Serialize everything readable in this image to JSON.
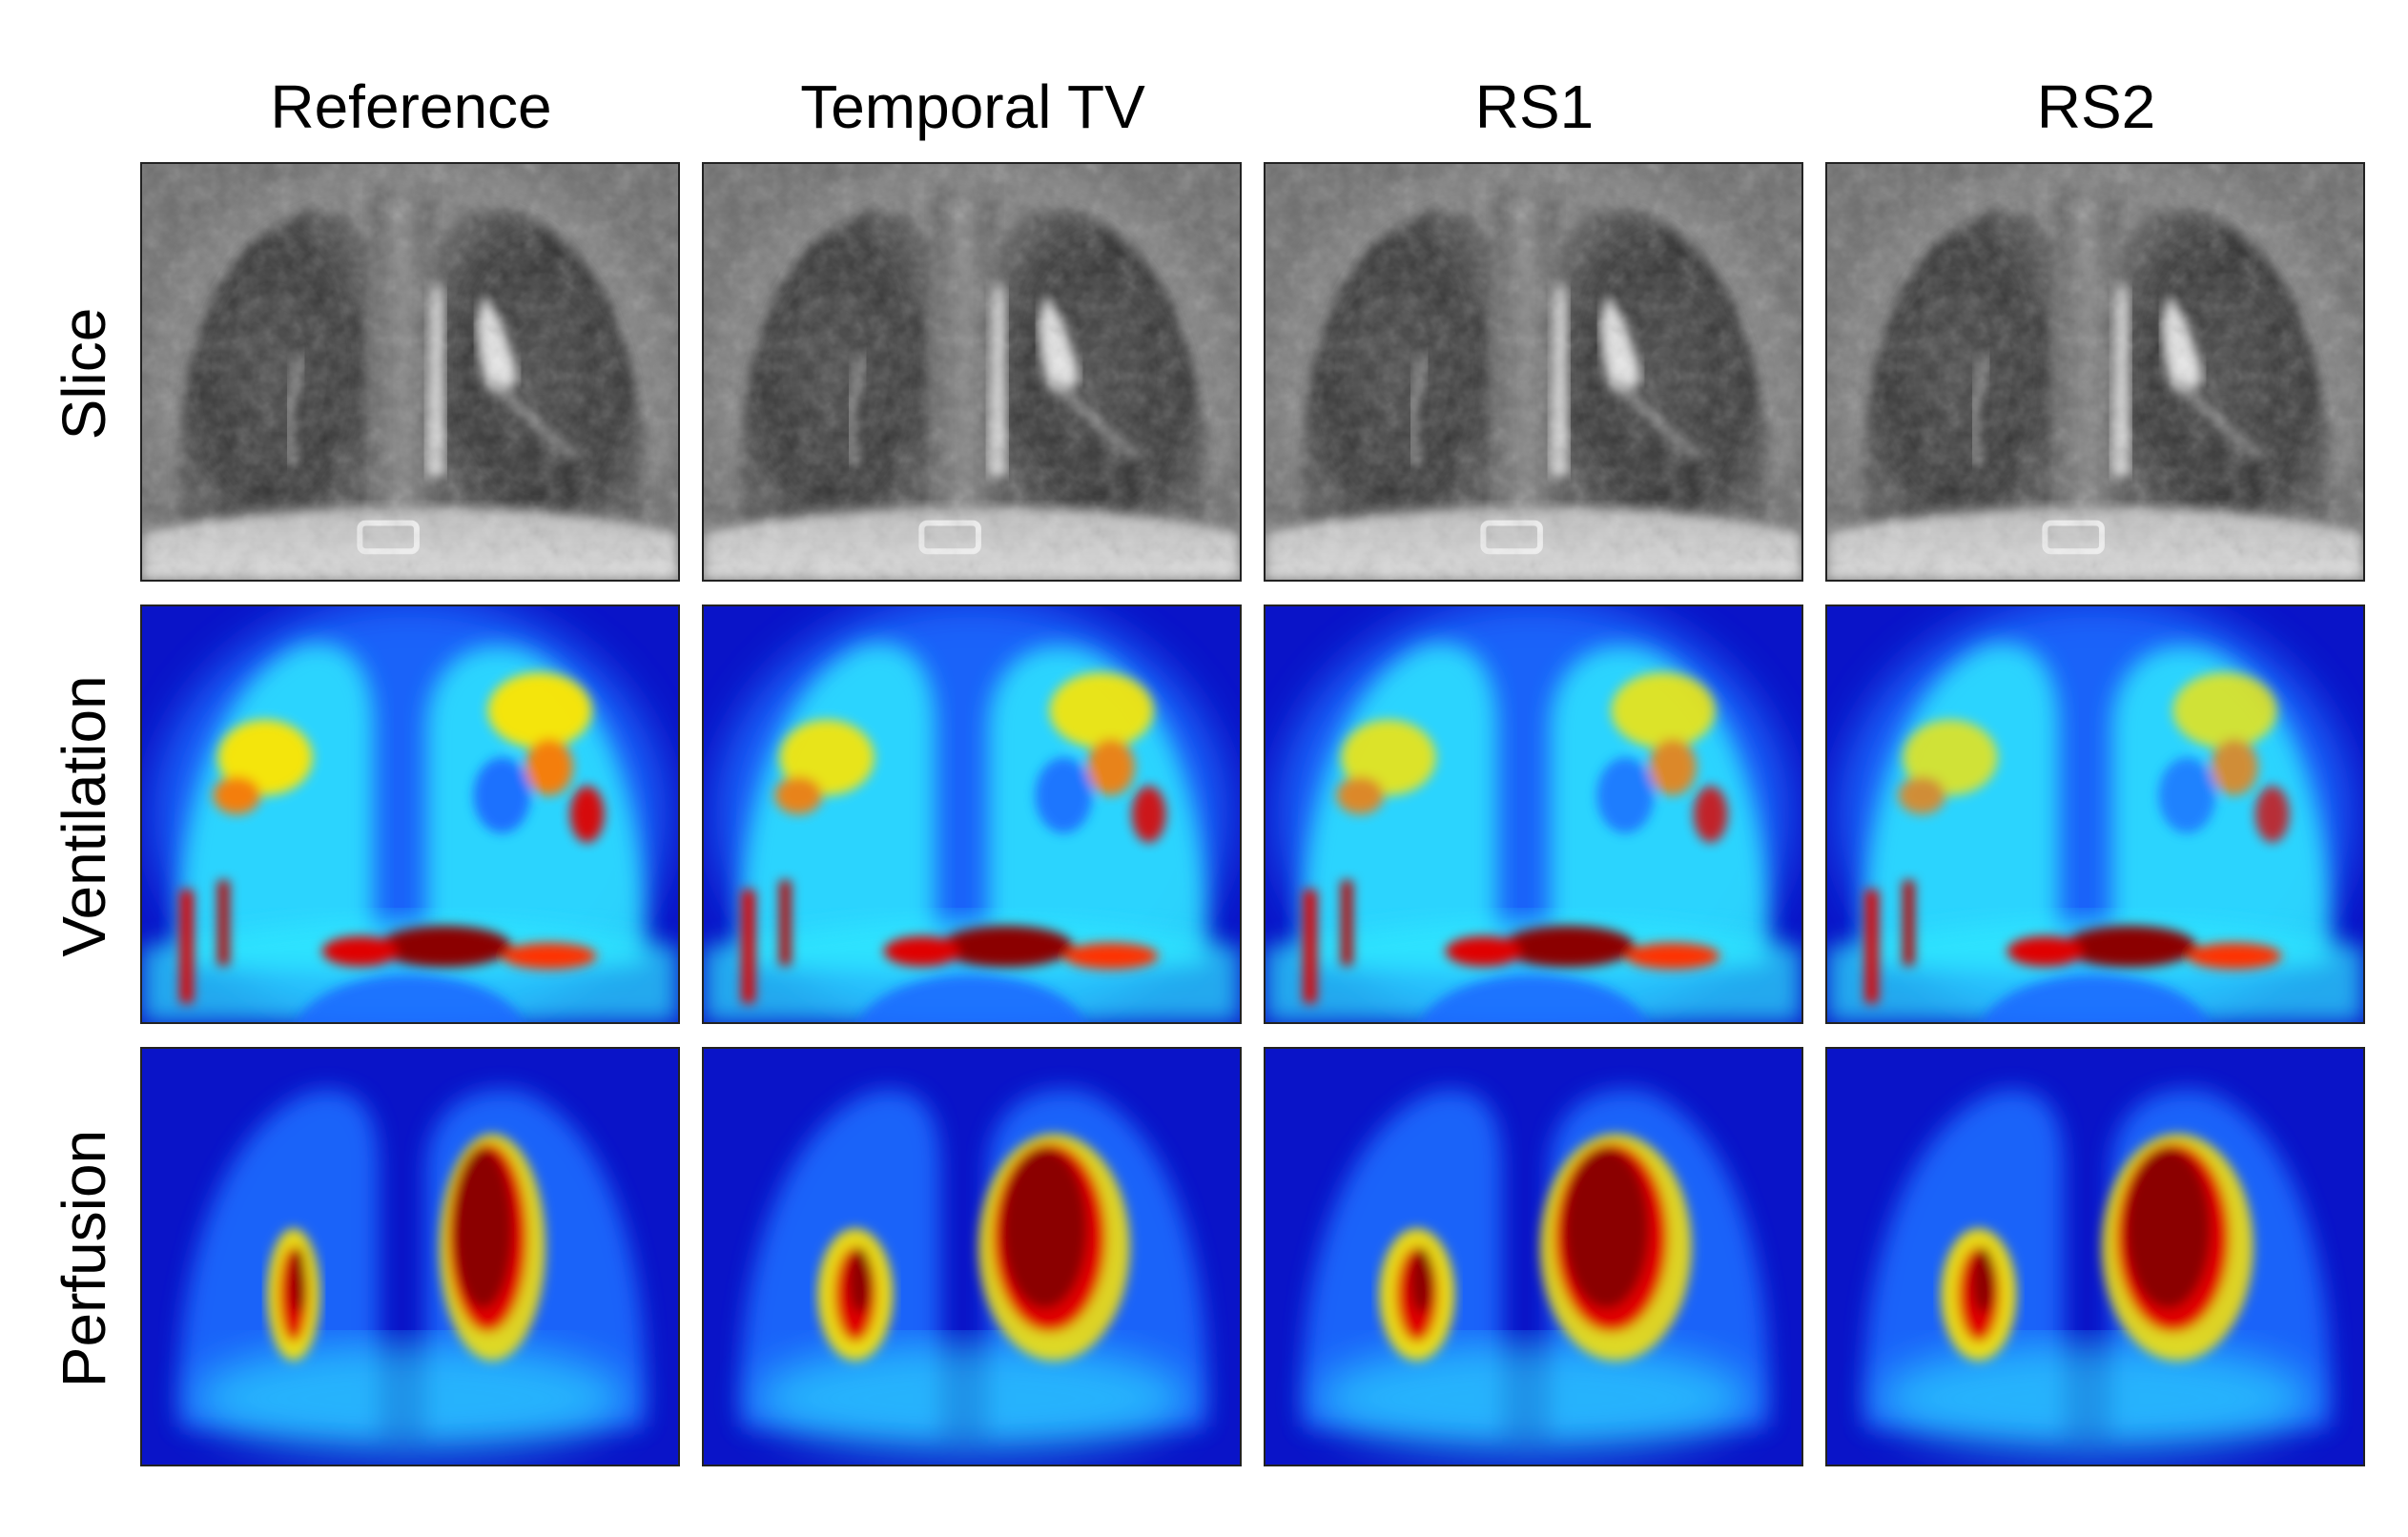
{
  "figure": {
    "columns": [
      {
        "label": "Reference"
      },
      {
        "label": "Temporal TV"
      },
      {
        "label": "RS1"
      },
      {
        "label": "RS2"
      }
    ],
    "rows": [
      {
        "label": "Slice",
        "kind": "grayscale"
      },
      {
        "label": "Ventilation",
        "kind": "jet"
      },
      {
        "label": "Perfusion",
        "kind": "jet"
      }
    ]
  },
  "colors": {
    "jet_background": "#0a14c8",
    "jet_low": "#1e6cff",
    "jet_mid": "#2ee8ff",
    "jet_high": "#ffe600",
    "jet_max": "#8b0000",
    "slice_background": "#6e6e6e"
  }
}
